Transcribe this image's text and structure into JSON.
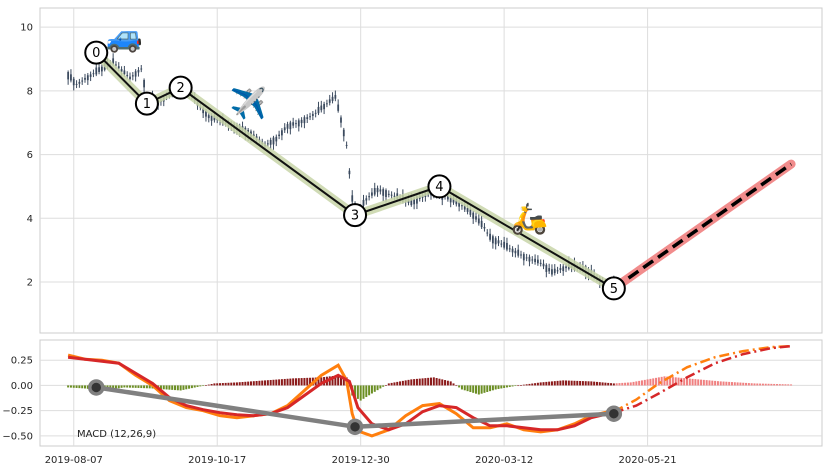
{
  "chart_data": [
    {
      "type": "candlestick",
      "panel": "price",
      "ylim": [
        0.4,
        10.6
      ],
      "yticks": [
        2,
        4,
        6,
        8,
        10
      ],
      "grid": true,
      "colors": {
        "candle": "#3b4a5e",
        "path": "#111111",
        "path_halo": "#c8d5a8",
        "forecast": "#f08080",
        "forecast_dash": "#000000"
      },
      "candles_keypoints": [
        [
          0,
          8.5
        ],
        [
          3,
          8.2
        ],
        [
          10,
          8.6
        ],
        [
          16,
          8.9
        ],
        [
          22,
          8.4
        ],
        [
          26,
          8.7
        ],
        [
          28,
          7.8
        ],
        [
          32,
          7.6
        ],
        [
          36,
          7.9
        ],
        [
          42,
          8.1
        ],
        [
          46,
          7.6
        ],
        [
          50,
          7.2
        ],
        [
          56,
          7.0
        ],
        [
          62,
          6.8
        ],
        [
          66,
          6.6
        ],
        [
          70,
          6.3
        ],
        [
          74,
          6.5
        ],
        [
          78,
          6.9
        ],
        [
          82,
          7.0
        ],
        [
          88,
          7.3
        ],
        [
          92,
          7.6
        ],
        [
          95,
          7.8
        ],
        [
          97,
          7.1
        ],
        [
          99,
          6.3
        ],
        [
          101,
          4.6
        ],
        [
          103,
          4.2
        ],
        [
          106,
          4.6
        ],
        [
          110,
          4.9
        ],
        [
          116,
          4.7
        ],
        [
          122,
          4.5
        ],
        [
          128,
          4.8
        ],
        [
          134,
          4.7
        ],
        [
          140,
          4.4
        ],
        [
          144,
          4.1
        ],
        [
          148,
          3.7
        ],
        [
          150,
          3.4
        ],
        [
          156,
          3.1
        ],
        [
          162,
          2.8
        ],
        [
          168,
          2.6
        ],
        [
          172,
          2.3
        ],
        [
          178,
          2.5
        ],
        [
          184,
          2.4
        ],
        [
          190,
          2.0
        ],
        [
          194,
          1.9
        ]
      ],
      "zigzag": [
        {
          "label": "0",
          "x": 10,
          "y": 9.2
        },
        {
          "label": "1",
          "x": 28,
          "y": 7.6
        },
        {
          "label": "2",
          "x": 40,
          "y": 8.1
        },
        {
          "label": "3",
          "x": 102,
          "y": 4.1
        },
        {
          "label": "4",
          "x": 132,
          "y": 5.0
        },
        {
          "label": "5",
          "x": 194,
          "y": 1.8
        }
      ],
      "forecast": [
        [
          194,
          1.8
        ],
        [
          257,
          5.7
        ]
      ],
      "emojis": [
        {
          "glyph": "🚙",
          "x": 20,
          "y": 9.7
        },
        {
          "glyph": "✈️",
          "x": 64,
          "y": 7.6
        },
        {
          "glyph": "🛵",
          "x": 164,
          "y": 4.0
        }
      ]
    },
    {
      "type": "macd",
      "panel": "indicator",
      "label": "MACD (12,26,9)",
      "ylim": [
        -0.6,
        0.45
      ],
      "yticks": [
        0.25,
        0.0,
        -0.25,
        -0.5
      ],
      "ytick_labels": [
        "0.25",
        "0.00",
        "−0.25",
        "−0.50"
      ],
      "grid": true,
      "colors": {
        "macd": "#ff7f0e",
        "signal": "#d62728",
        "hist_pos": "#8b1a1a",
        "hist_neg": "#6b8e23",
        "hist_forecast": "#f08080",
        "zigzag": "#808080"
      },
      "macd_keypoints": [
        [
          0,
          0.3
        ],
        [
          6,
          0.26
        ],
        [
          12,
          0.25
        ],
        [
          18,
          0.22
        ],
        [
          24,
          0.1
        ],
        [
          30,
          0.0
        ],
        [
          36,
          -0.15
        ],
        [
          42,
          -0.22
        ],
        [
          48,
          -0.25
        ],
        [
          54,
          -0.3
        ],
        [
          60,
          -0.32
        ],
        [
          66,
          -0.3
        ],
        [
          72,
          -0.28
        ],
        [
          78,
          -0.2
        ],
        [
          84,
          -0.05
        ],
        [
          90,
          0.1
        ],
        [
          96,
          0.2
        ],
        [
          99,
          0.05
        ],
        [
          101,
          -0.28
        ],
        [
          103,
          -0.45
        ],
        [
          108,
          -0.5
        ],
        [
          114,
          -0.44
        ],
        [
          120,
          -0.3
        ],
        [
          126,
          -0.2
        ],
        [
          132,
          -0.18
        ],
        [
          138,
          -0.28
        ],
        [
          144,
          -0.42
        ],
        [
          150,
          -0.42
        ],
        [
          156,
          -0.38
        ],
        [
          162,
          -0.44
        ],
        [
          168,
          -0.46
        ],
        [
          174,
          -0.44
        ],
        [
          180,
          -0.38
        ],
        [
          186,
          -0.3
        ],
        [
          192,
          -0.26
        ],
        [
          194,
          -0.26
        ]
      ],
      "signal_keypoints": [
        [
          0,
          0.28
        ],
        [
          6,
          0.26
        ],
        [
          12,
          0.24
        ],
        [
          18,
          0.22
        ],
        [
          24,
          0.12
        ],
        [
          30,
          0.02
        ],
        [
          36,
          -0.12
        ],
        [
          42,
          -0.2
        ],
        [
          48,
          -0.24
        ],
        [
          54,
          -0.27
        ],
        [
          60,
          -0.29
        ],
        [
          66,
          -0.3
        ],
        [
          72,
          -0.28
        ],
        [
          78,
          -0.22
        ],
        [
          84,
          -0.1
        ],
        [
          90,
          0.02
        ],
        [
          96,
          0.1
        ],
        [
          100,
          0.04
        ],
        [
          103,
          -0.22
        ],
        [
          108,
          -0.38
        ],
        [
          114,
          -0.44
        ],
        [
          120,
          -0.38
        ],
        [
          126,
          -0.26
        ],
        [
          132,
          -0.2
        ],
        [
          138,
          -0.22
        ],
        [
          144,
          -0.32
        ],
        [
          150,
          -0.4
        ],
        [
          156,
          -0.4
        ],
        [
          162,
          -0.42
        ],
        [
          168,
          -0.44
        ],
        [
          174,
          -0.44
        ],
        [
          180,
          -0.4
        ],
        [
          186,
          -0.32
        ],
        [
          192,
          -0.28
        ],
        [
          194,
          -0.27
        ]
      ],
      "macd_forecast": [
        [
          194,
          -0.26
        ],
        [
          202,
          -0.14
        ],
        [
          210,
          0.02
        ],
        [
          220,
          0.18
        ],
        [
          230,
          0.28
        ],
        [
          240,
          0.34
        ],
        [
          250,
          0.38
        ],
        [
          257,
          0.39
        ]
      ],
      "signal_forecast": [
        [
          194,
          -0.27
        ],
        [
          202,
          -0.2
        ],
        [
          210,
          -0.08
        ],
        [
          220,
          0.08
        ],
        [
          230,
          0.22
        ],
        [
          240,
          0.31
        ],
        [
          250,
          0.37
        ],
        [
          257,
          0.39
        ]
      ],
      "hist_keypoints": [
        [
          0,
          -0.02
        ],
        [
          6,
          -0.03
        ],
        [
          12,
          -0.05
        ],
        [
          20,
          -0.02
        ],
        [
          30,
          -0.03
        ],
        [
          40,
          -0.05
        ],
        [
          52,
          0.02
        ],
        [
          60,
          0.03
        ],
        [
          70,
          0.05
        ],
        [
          80,
          0.07
        ],
        [
          90,
          0.08
        ],
        [
          96,
          0.1
        ],
        [
          99,
          0.08
        ],
        [
          101,
          -0.1
        ],
        [
          104,
          -0.15
        ],
        [
          108,
          -0.08
        ],
        [
          114,
          0.02
        ],
        [
          122,
          0.06
        ],
        [
          130,
          0.08
        ],
        [
          136,
          0.04
        ],
        [
          140,
          -0.04
        ],
        [
          146,
          -0.09
        ],
        [
          152,
          -0.04
        ],
        [
          160,
          0.0
        ],
        [
          168,
          0.03
        ],
        [
          176,
          0.05
        ],
        [
          186,
          0.04
        ],
        [
          194,
          0.02
        ],
        [
          200,
          0.03
        ],
        [
          206,
          0.06
        ],
        [
          212,
          0.09
        ],
        [
          220,
          0.07
        ],
        [
          232,
          0.04
        ],
        [
          244,
          0.02
        ],
        [
          257,
          0.01
        ]
      ],
      "zigzag": [
        [
          10,
          -0.02
        ],
        [
          102,
          -0.41
        ],
        [
          194,
          -0.28
        ]
      ]
    }
  ],
  "x_axis": {
    "tick_labels": [
      {
        "label": "2019-08-07",
        "x": 2
      },
      {
        "label": "2019-10-17",
        "x": 53
      },
      {
        "label": "2019-12-30",
        "x": 104
      },
      {
        "label": "2020-03-12",
        "x": 155
      },
      {
        "label": "2020-05-21",
        "x": 206
      }
    ],
    "xlim": [
      -10,
      268
    ]
  }
}
